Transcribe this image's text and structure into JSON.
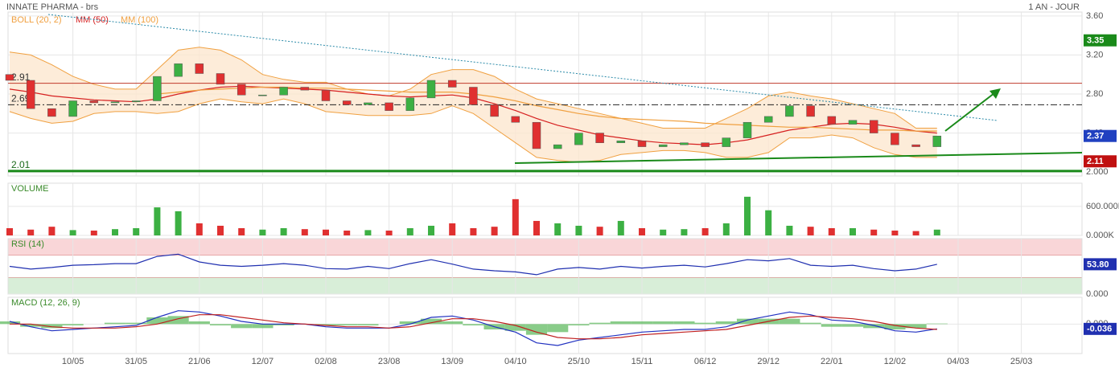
{
  "header": {
    "title": "INNATE PHARMA - brs",
    "period": "1 AN - JOUR"
  },
  "chart_data": [
    {
      "type": "candlestick",
      "up_color": "#3cb043",
      "down_color": "#e03030",
      "open": [
        3.0,
        2.94,
        2.65,
        2.57,
        2.73,
        2.71,
        2.72,
        2.73,
        2.98,
        3.11,
        3.01,
        2.9,
        2.79,
        2.79,
        2.87,
        2.84,
        2.73,
        2.69,
        2.71,
        2.63,
        2.76,
        2.94,
        2.87,
        2.69,
        2.57,
        2.51,
        2.24,
        2.28,
        2.4,
        2.3,
        2.32,
        2.26,
        2.28,
        2.3,
        2.26,
        2.35,
        2.51,
        2.57,
        2.68,
        2.57,
        2.49,
        2.53,
        2.4,
        2.28,
        2.26,
        null,
        null,
        null,
        null,
        null,
        null
      ],
      "close": [
        2.94,
        2.65,
        2.57,
        2.73,
        2.71,
        2.72,
        2.73,
        2.98,
        3.11,
        3.01,
        2.9,
        2.79,
        2.79,
        2.87,
        2.84,
        2.73,
        2.69,
        2.71,
        2.63,
        2.76,
        2.94,
        2.87,
        2.69,
        2.57,
        2.51,
        2.24,
        2.28,
        2.4,
        2.3,
        2.32,
        2.26,
        2.28,
        2.3,
        2.26,
        2.35,
        2.51,
        2.57,
        2.68,
        2.57,
        2.49,
        2.53,
        2.4,
        2.28,
        2.26,
        2.37,
        null,
        null,
        null,
        null,
        null,
        null
      ],
      "bands": {
        "name": "BOLL (20, 2)",
        "color": "#f0a040",
        "fill": "#fde7cf",
        "upper": [
          3.23,
          3.2,
          3.1,
          2.98,
          2.9,
          2.85,
          2.85,
          3.05,
          3.25,
          3.28,
          3.25,
          3.15,
          3.0,
          2.95,
          2.92,
          2.92,
          2.85,
          2.8,
          2.78,
          2.85,
          3.0,
          3.05,
          3.05,
          2.98,
          2.85,
          2.75,
          2.7,
          2.65,
          2.6,
          2.55,
          2.5,
          2.45,
          2.45,
          2.45,
          2.55,
          2.65,
          2.78,
          2.82,
          2.78,
          2.75,
          2.7,
          2.65,
          2.6,
          2.45,
          2.45,
          null,
          null,
          null,
          null,
          null,
          null
        ],
        "lower": [
          2.62,
          2.55,
          2.5,
          2.52,
          2.6,
          2.62,
          2.62,
          2.6,
          2.62,
          2.7,
          2.75,
          2.72,
          2.7,
          2.75,
          2.7,
          2.62,
          2.6,
          2.58,
          2.58,
          2.58,
          2.6,
          2.68,
          2.6,
          2.45,
          2.3,
          2.15,
          2.12,
          2.1,
          2.12,
          2.18,
          2.2,
          2.22,
          2.22,
          2.2,
          2.15,
          2.15,
          2.2,
          2.35,
          2.35,
          2.38,
          2.35,
          2.25,
          2.18,
          2.15,
          2.15,
          null,
          null,
          null,
          null,
          null,
          null
        ]
      },
      "series": [
        {
          "name": "MM (50)",
          "color": "#d62020",
          "values": [
            2.85,
            2.82,
            2.78,
            2.76,
            2.74,
            2.73,
            2.72,
            2.75,
            2.8,
            2.84,
            2.87,
            2.88,
            2.87,
            2.86,
            2.85,
            2.84,
            2.82,
            2.8,
            2.78,
            2.77,
            2.78,
            2.79,
            2.76,
            2.7,
            2.63,
            2.55,
            2.48,
            2.43,
            2.38,
            2.35,
            2.32,
            2.3,
            2.29,
            2.28,
            2.3,
            2.33,
            2.38,
            2.43,
            2.46,
            2.49,
            2.5,
            2.49,
            2.46,
            2.42,
            2.4,
            null,
            null,
            null,
            null,
            null,
            null
          ]
        },
        {
          "name": "MM (100)",
          "color": "#f0a040",
          "values": [
            null,
            null,
            null,
            null,
            null,
            null,
            null,
            2.8,
            2.82,
            2.84,
            2.85,
            2.86,
            2.87,
            2.87,
            2.86,
            2.86,
            2.85,
            2.84,
            2.83,
            2.82,
            2.82,
            2.82,
            2.8,
            2.77,
            2.73,
            2.68,
            2.64,
            2.6,
            2.57,
            2.55,
            2.54,
            2.53,
            2.52,
            2.5,
            2.49,
            2.48,
            2.47,
            2.46,
            2.46,
            2.45,
            2.44,
            2.43,
            2.43,
            2.42,
            2.42,
            null,
            null,
            null,
            null,
            null,
            null
          ]
        }
      ],
      "ylim": [
        1.96,
        3.64
      ],
      "yticks": [
        {
          "value": 2.0,
          "label": "2.000"
        },
        {
          "value": 2.4,
          "label": "2.40"
        },
        {
          "value": 2.8,
          "label": "2.80"
        },
        {
          "value": 3.2,
          "label": "3.20"
        },
        {
          "value": 3.6,
          "label": "3.60"
        }
      ],
      "levels": [
        {
          "value": 2.91,
          "color": "#c0392b"
        },
        {
          "value": 2.69,
          "color": "#222222",
          "dash": "8 3 2 3"
        },
        {
          "value": 2.01,
          "color": "#1a8a1a",
          "width": 3
        }
      ],
      "tags": [
        {
          "value": 3.35,
          "color": "#1a8a1a"
        },
        {
          "value": 2.37,
          "color": "#2040c0"
        },
        {
          "value": 2.11,
          "color": "#c01010"
        }
      ],
      "grid": true
    },
    {
      "type": "bar",
      "title": "VOLUME",
      "values": [
        150000,
        120000,
        180000,
        110000,
        100000,
        130000,
        150000,
        580000,
        500000,
        250000,
        200000,
        150000,
        120000,
        150000,
        130000,
        120000,
        100000,
        110000,
        100000,
        150000,
        200000,
        250000,
        150000,
        180000,
        750000,
        300000,
        250000,
        200000,
        180000,
        300000,
        150000,
        120000,
        130000,
        150000,
        250000,
        800000,
        520000,
        200000,
        180000,
        150000,
        150000,
        120000,
        100000,
        90000,
        120000,
        null,
        null,
        null,
        null,
        null,
        null
      ],
      "ylim": [
        0,
        1080000
      ],
      "yticks": [
        {
          "value": 0,
          "label": "0.000K"
        },
        {
          "value": 600000,
          "label": "600.000K"
        }
      ],
      "grid": true
    },
    {
      "type": "line",
      "title": "RSI (14)",
      "color": "#2030b0",
      "values": [
        50,
        45,
        48,
        52,
        53,
        55,
        55,
        68,
        72,
        58,
        52,
        50,
        52,
        55,
        52,
        46,
        45,
        50,
        46,
        55,
        62,
        54,
        45,
        42,
        40,
        35,
        45,
        48,
        45,
        50,
        47,
        50,
        52,
        49,
        55,
        62,
        60,
        64,
        52,
        50,
        52,
        46,
        42,
        45,
        53.8,
        null,
        null,
        null,
        null,
        null,
        null
      ],
      "zones": [
        {
          "from": 70,
          "to": 100,
          "color": "#f9d6d8"
        },
        {
          "from": 0,
          "to": 30,
          "color": "#d8eed8"
        }
      ],
      "tag": {
        "value": 53.8,
        "label": "53.80",
        "color": "#2030b0"
      },
      "ylim": [
        0,
        100
      ],
      "yticks": [
        {
          "value": 0,
          "label": "0.000"
        }
      ],
      "grid": true
    },
    {
      "type": "line",
      "title": "MACD (12, 26, 9)",
      "series": [
        {
          "color": "#2030c0",
          "values": [
            0.02,
            -0.02,
            -0.05,
            -0.04,
            -0.03,
            -0.02,
            -0.01,
            0.05,
            0.1,
            0.09,
            0.06,
            0.02,
            0.0,
            0.0,
            0.0,
            -0.02,
            -0.03,
            -0.03,
            -0.03,
            0.0,
            0.05,
            0.06,
            0.03,
            -0.02,
            -0.06,
            -0.14,
            -0.16,
            -0.12,
            -0.1,
            -0.08,
            -0.06,
            -0.05,
            -0.04,
            -0.04,
            -0.02,
            0.03,
            0.06,
            0.09,
            0.07,
            0.03,
            0.02,
            -0.01,
            -0.05,
            -0.06,
            -0.036,
            null,
            null,
            null,
            null,
            null,
            null
          ]
        },
        {
          "color": "#c02020",
          "values": [
            0.0,
            0.0,
            -0.02,
            -0.03,
            -0.03,
            -0.03,
            -0.02,
            0.0,
            0.04,
            0.07,
            0.07,
            0.05,
            0.03,
            0.01,
            0.0,
            -0.01,
            -0.02,
            -0.02,
            -0.03,
            -0.02,
            0.01,
            0.04,
            0.04,
            0.02,
            -0.01,
            -0.06,
            -0.1,
            -0.11,
            -0.11,
            -0.1,
            -0.08,
            -0.07,
            -0.06,
            -0.05,
            -0.04,
            -0.01,
            0.02,
            0.05,
            0.06,
            0.05,
            0.04,
            0.02,
            -0.01,
            -0.03,
            -0.04,
            null,
            null,
            null,
            null,
            null,
            null
          ]
        }
      ],
      "histogram": {
        "color": "#6cbf6c",
        "values": [
          0.02,
          -0.02,
          -0.03,
          -0.01,
          0,
          0.01,
          0.01,
          0.05,
          0.06,
          0.02,
          -0.01,
          -0.03,
          -0.03,
          -0.01,
          0,
          -0.01,
          -0.01,
          -0.01,
          0,
          0.02,
          0.04,
          0.02,
          -0.01,
          -0.04,
          -0.05,
          -0.08,
          -0.06,
          -0.01,
          0.01,
          0.02,
          0.02,
          0.02,
          0.02,
          0.01,
          0.02,
          0.04,
          0.04,
          0.04,
          0.01,
          -0.02,
          -0.02,
          -0.03,
          -0.04,
          -0.03,
          0.004,
          null,
          null,
          null,
          null,
          null,
          null
        ]
      },
      "tag": {
        "value": -0.036,
        "color": "#2030b0"
      },
      "ylim": [
        -0.22,
        0.2
      ],
      "yticks": [
        {
          "value": 0,
          "label": "0.000"
        }
      ],
      "categories": [
        null,
        null,
        null,
        "10/05",
        null,
        null,
        "31/05",
        null,
        null,
        "21/06",
        null,
        null,
        "12/07",
        null,
        null,
        "02/08",
        null,
        null,
        "23/08",
        null,
        null,
        "13/09",
        null,
        null,
        "04/10",
        null,
        null,
        "25/10",
        null,
        null,
        "15/11",
        null,
        null,
        "06/12",
        null,
        null,
        "29/12",
        null,
        null,
        "22/01",
        null,
        null,
        "12/02",
        null,
        null,
        "04/03",
        null,
        null,
        "25/03",
        null,
        null
      ],
      "grid": true
    }
  ]
}
